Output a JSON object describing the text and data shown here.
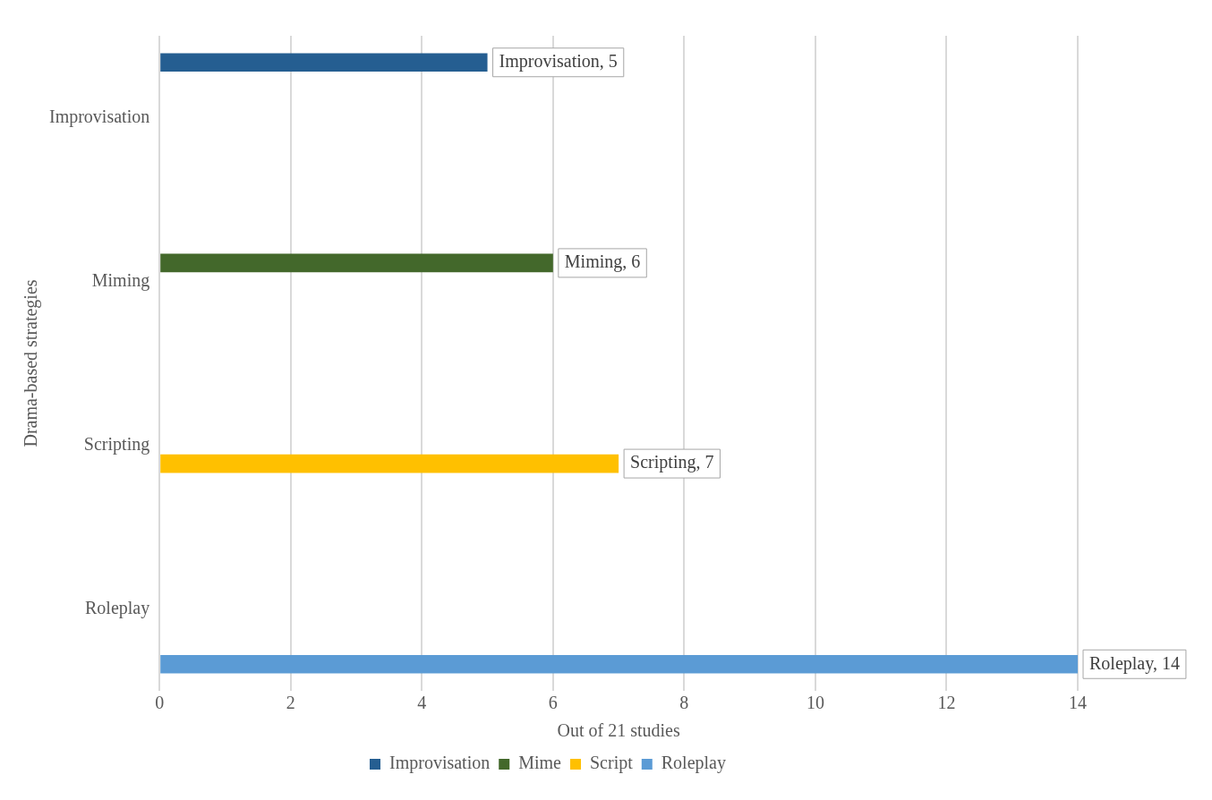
{
  "chart_data": {
    "type": "bar",
    "orientation": "horizontal",
    "xlabel": "Out of 21 studies",
    "ylabel": "Drama-based strategies",
    "categories": [
      "Improvisation",
      "Miming",
      "Scripting",
      "Roleplay"
    ],
    "series": [
      {
        "name": "Improvisation",
        "color": "#255e91",
        "values": [
          5,
          null,
          null,
          null
        ],
        "value_labels": [
          "Improvisation, 5",
          null,
          null,
          null
        ]
      },
      {
        "name": "Mime",
        "color": "#43682b",
        "values": [
          null,
          6,
          null,
          null
        ],
        "value_labels": [
          null,
          "Miming, 6",
          null,
          null
        ]
      },
      {
        "name": "Script",
        "color": "#ffc000",
        "values": [
          null,
          null,
          7,
          null
        ],
        "value_labels": [
          null,
          null,
          "Scripting, 7",
          null
        ]
      },
      {
        "name": "Roleplay",
        "color": "#5b9bd5",
        "values": [
          null,
          null,
          null,
          14
        ],
        "value_labels": [
          null,
          null,
          null,
          "Roleplay, 14"
        ]
      }
    ],
    "xlim": [
      0,
      14
    ],
    "xticks": [
      0,
      2,
      4,
      6,
      8,
      10,
      12,
      14
    ],
    "grid": "x",
    "legend": "bottom"
  }
}
